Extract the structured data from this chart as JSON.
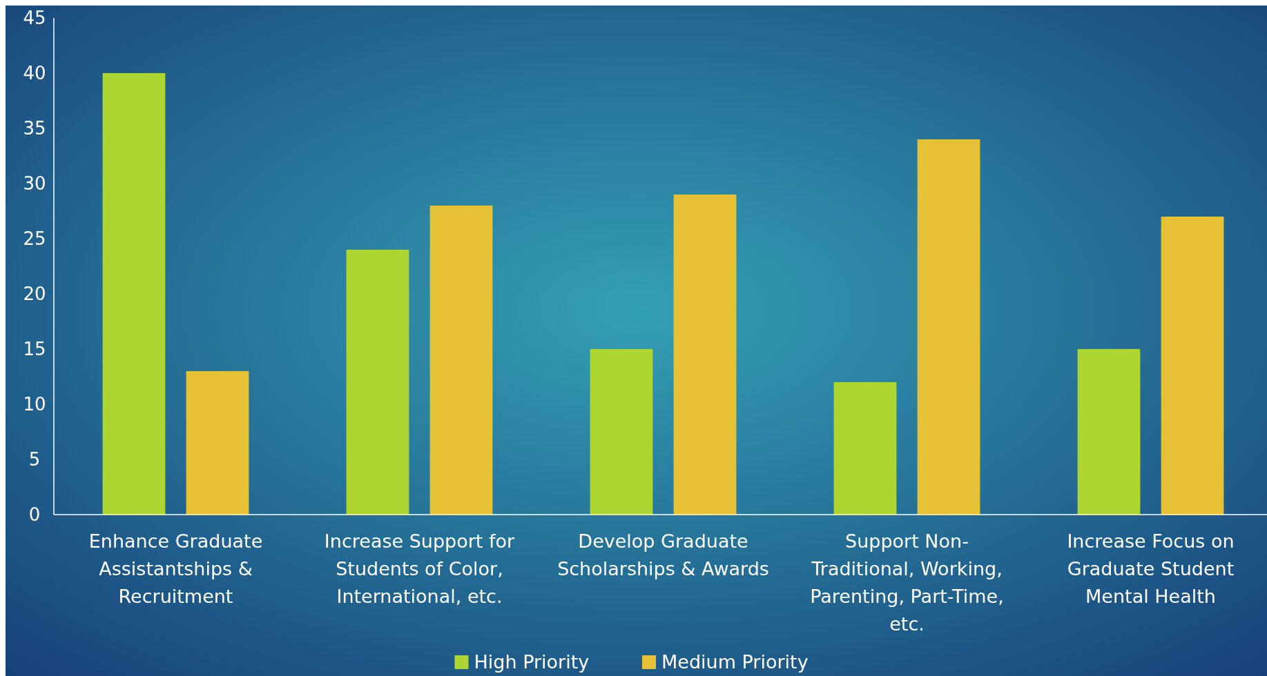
{
  "chart_data": {
    "type": "bar",
    "categories": [
      "Enhance Graduate Assistantships & Recruitment",
      "Increase Support for Students of Color, International, etc.",
      "Develop Graduate Scholarships & Awards",
      "Support Non-Traditional, Working, Parenting, Part-Time, etc.",
      "Increase Focus on Graduate Student Mental Health"
    ],
    "series": [
      {
        "name": "High Priority",
        "color": "#add633",
        "values": [
          40,
          24,
          15,
          12,
          15
        ]
      },
      {
        "name": "Medium Priority",
        "color": "#e6c135",
        "values": [
          13,
          28,
          29,
          34,
          27
        ]
      }
    ],
    "ylim": [
      0,
      45
    ],
    "yticks": [
      0,
      5,
      10,
      15,
      20,
      25,
      30,
      35,
      40,
      45
    ],
    "grid": false,
    "legend": "bottom"
  }
}
